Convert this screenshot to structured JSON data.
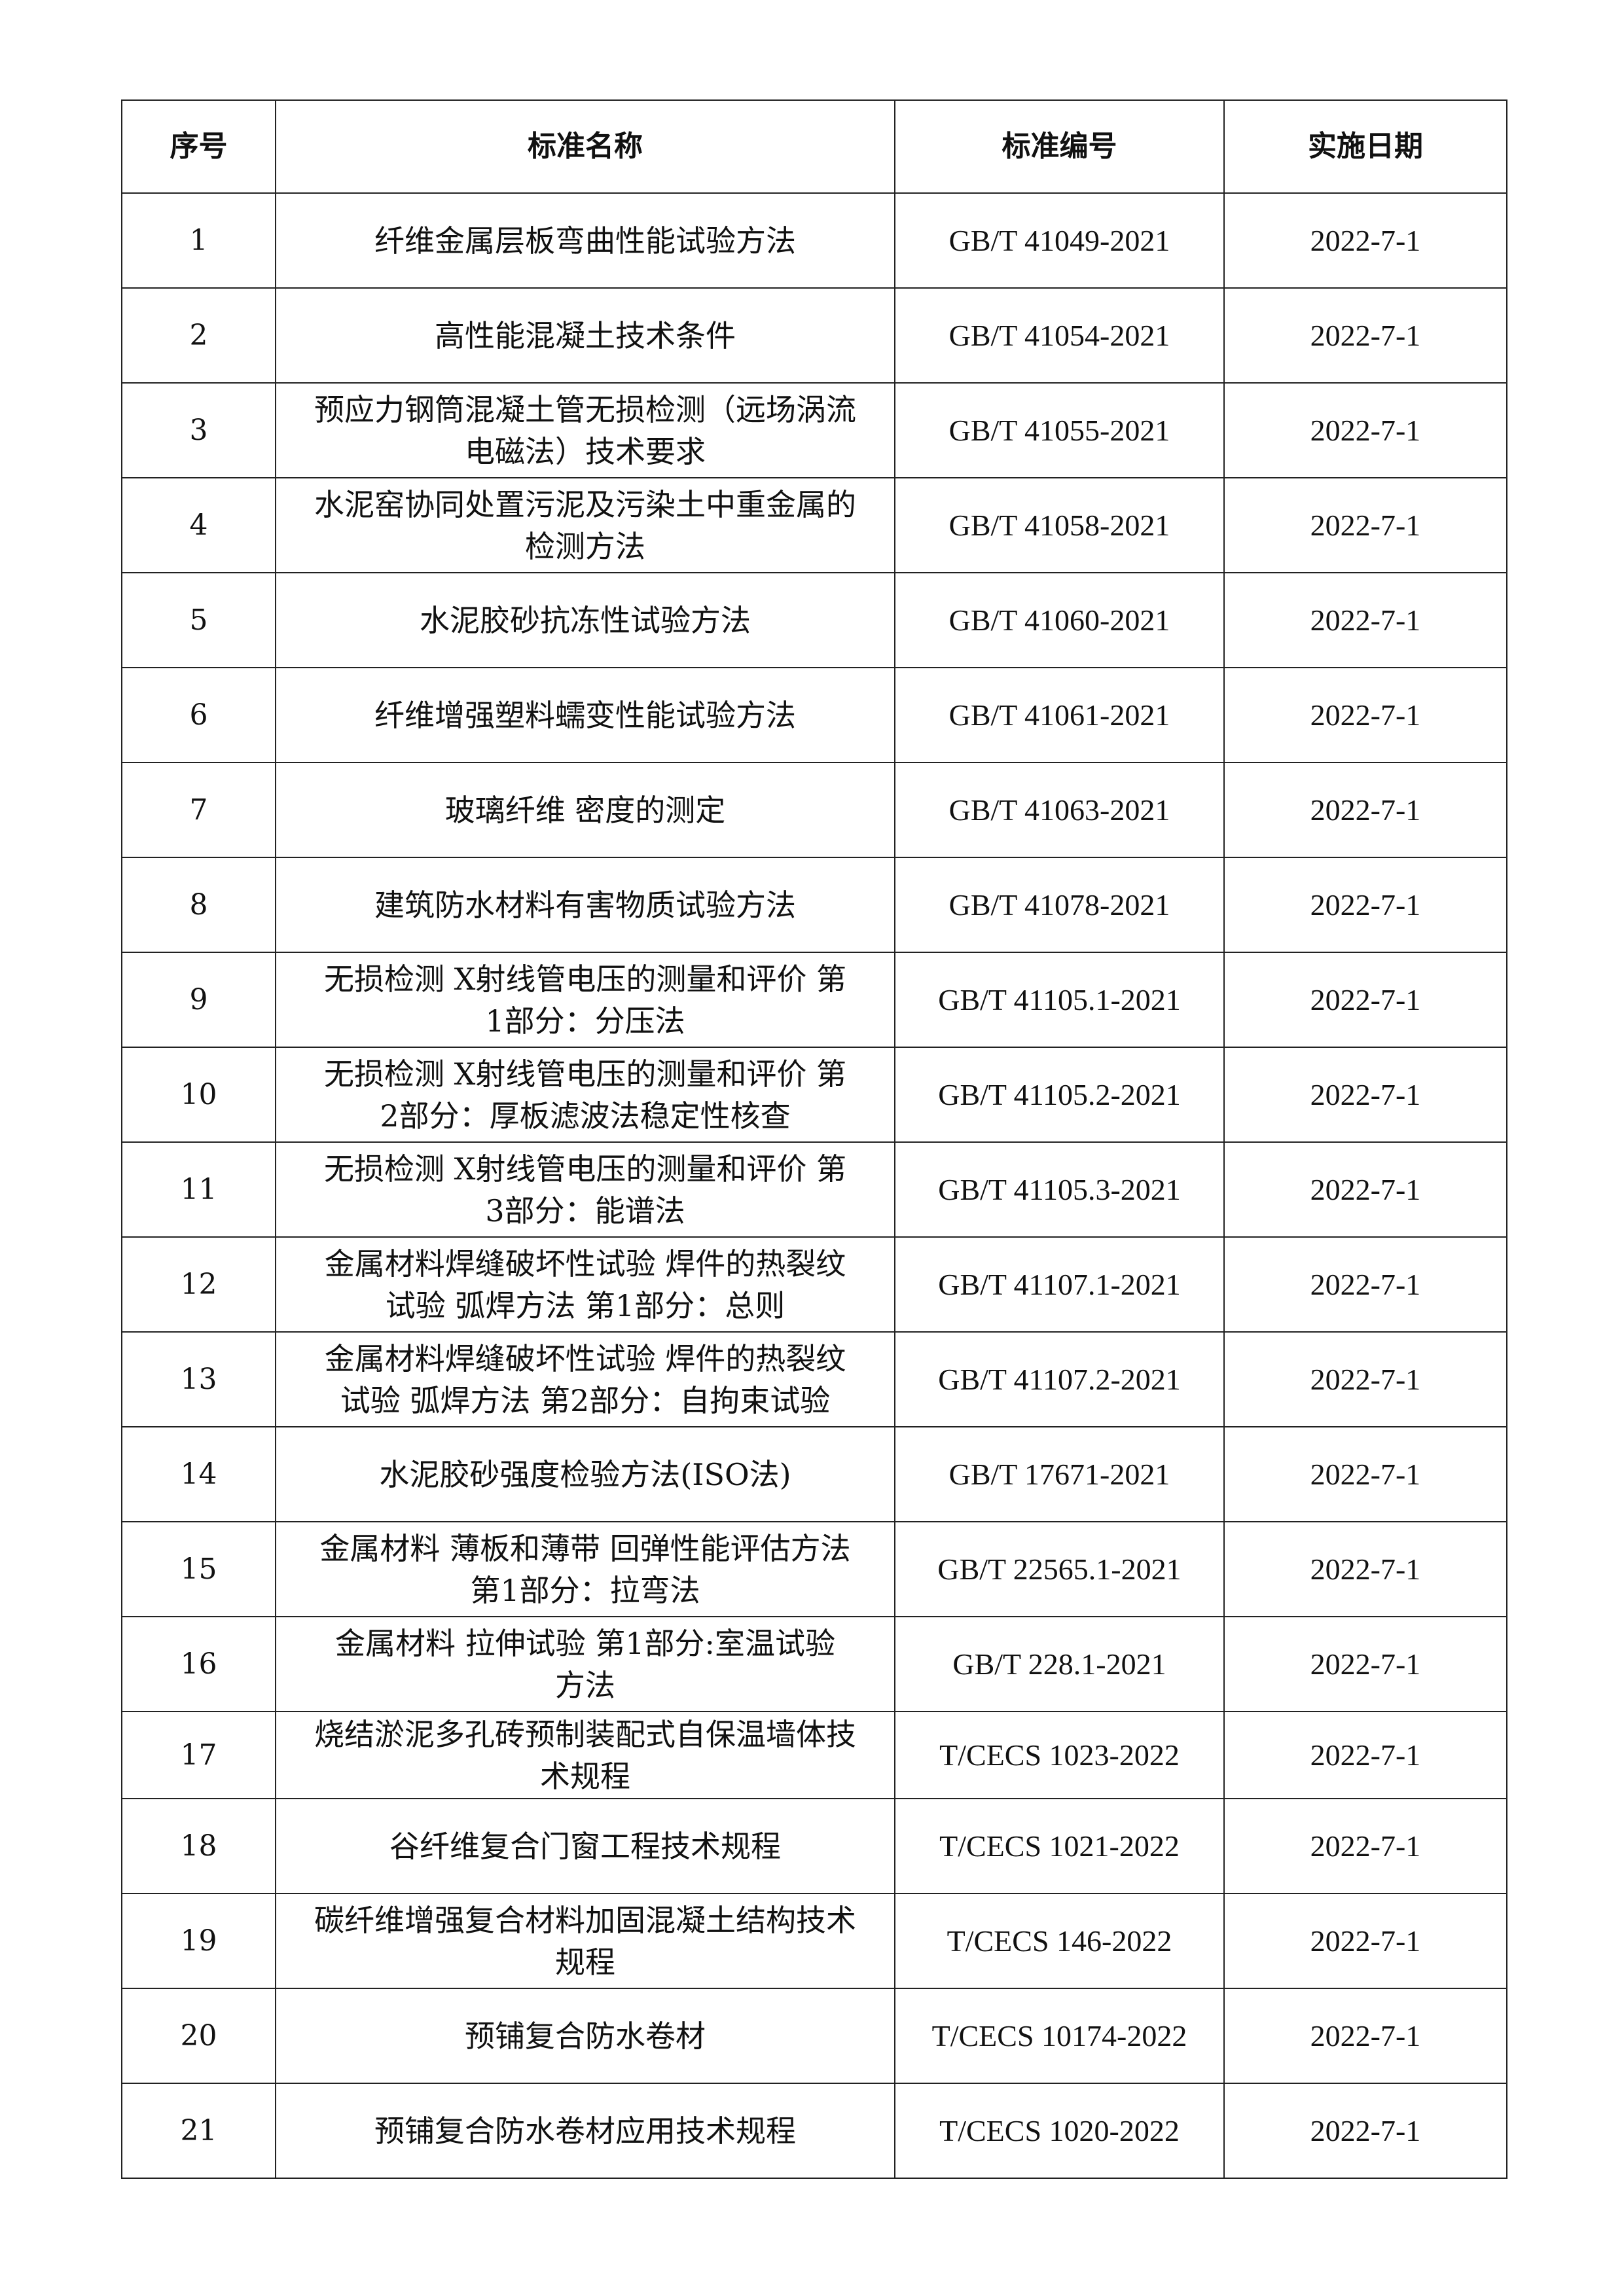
{
  "table": {
    "headers": [
      "序号",
      "标准名称",
      "标准编号",
      "实施日期"
    ],
    "rows": [
      {
        "no": "1",
        "name": "纤维金属层板弯曲性能试验方法",
        "code": "GB/T 41049-2021",
        "date": "2022-7-1"
      },
      {
        "no": "2",
        "name": "高性能混凝土技术条件",
        "code": "GB/T 41054-2021",
        "date": "2022-7-1"
      },
      {
        "no": "3",
        "name": "预应力钢筒混凝土管无损检测（远场涡流\n电磁法）技术要求",
        "code": "GB/T 41055-2021",
        "date": "2022-7-1"
      },
      {
        "no": "4",
        "name": "水泥窑协同处置污泥及污染土中重金属的\n检测方法",
        "code": "GB/T 41058-2021",
        "date": "2022-7-1"
      },
      {
        "no": "5",
        "name": "水泥胶砂抗冻性试验方法",
        "code": "GB/T 41060-2021",
        "date": "2022-7-1"
      },
      {
        "no": "6",
        "name": "纤维增强塑料蠕变性能试验方法",
        "code": "GB/T 41061-2021",
        "date": "2022-7-1"
      },
      {
        "no": "7",
        "name": "玻璃纤维 密度的测定",
        "code": "GB/T 41063-2021",
        "date": "2022-7-1"
      },
      {
        "no": "8",
        "name": "建筑防水材料有害物质试验方法",
        "code": "GB/T 41078-2021",
        "date": "2022-7-1"
      },
      {
        "no": "9",
        "name": "无损检测 X射线管电压的测量和评价 第\n1部分：分压法",
        "code": "GB/T 41105.1-2021",
        "date": "2022-7-1"
      },
      {
        "no": "10",
        "name": "无损检测 X射线管电压的测量和评价 第\n2部分：厚板滤波法稳定性核查",
        "code": "GB/T 41105.2-2021",
        "date": "2022-7-1"
      },
      {
        "no": "11",
        "name": "无损检测 X射线管电压的测量和评价 第\n3部分：能谱法",
        "code": "GB/T 41105.3-2021",
        "date": "2022-7-1"
      },
      {
        "no": "12",
        "name": "金属材料焊缝破坏性试验 焊件的热裂纹\n试验 弧焊方法 第1部分：总则",
        "code": "GB/T 41107.1-2021",
        "date": "2022-7-1"
      },
      {
        "no": "13",
        "name": "金属材料焊缝破坏性试验 焊件的热裂纹\n试验 弧焊方法 第2部分：自拘束试验",
        "code": "GB/T 41107.2-2021",
        "date": "2022-7-1"
      },
      {
        "no": "14",
        "name": "水泥胶砂强度检验方法(ISO法)",
        "code": "GB/T 17671-2021",
        "date": "2022-7-1"
      },
      {
        "no": "15",
        "name": "金属材料 薄板和薄带 回弹性能评估方法\n第1部分：拉弯法",
        "code": "GB/T 22565.1-2021",
        "date": "2022-7-1"
      },
      {
        "no": "16",
        "name": "金属材料 拉伸试验 第1部分:室温试验\n方法",
        "code": "GB/T 228.1-2021",
        "date": "2022-7-1"
      },
      {
        "no": "17",
        "name": "烧结淤泥多孔砖预制装配式自保温墙体技\n术规程",
        "code": "T/CECS 1023-2022",
        "date": "2022-7-1"
      },
      {
        "no": "18",
        "name": "谷纤维复合门窗工程技术规程",
        "code": "T/CECS 1021-2022",
        "date": "2022-7-1"
      },
      {
        "no": "19",
        "name": "碳纤维增强复合材料加固混凝土结构技术\n规程",
        "code": "T/CECS 146-2022",
        "date": "2022-7-1"
      },
      {
        "no": "20",
        "name": "预铺复合防水卷材",
        "code": "T/CECS 10174-2022",
        "date": "2022-7-1"
      },
      {
        "no": "21",
        "name": "预铺复合防水卷材应用技术规程",
        "code": "T/CECS 1020-2022",
        "date": "2022-7-1"
      }
    ]
  }
}
